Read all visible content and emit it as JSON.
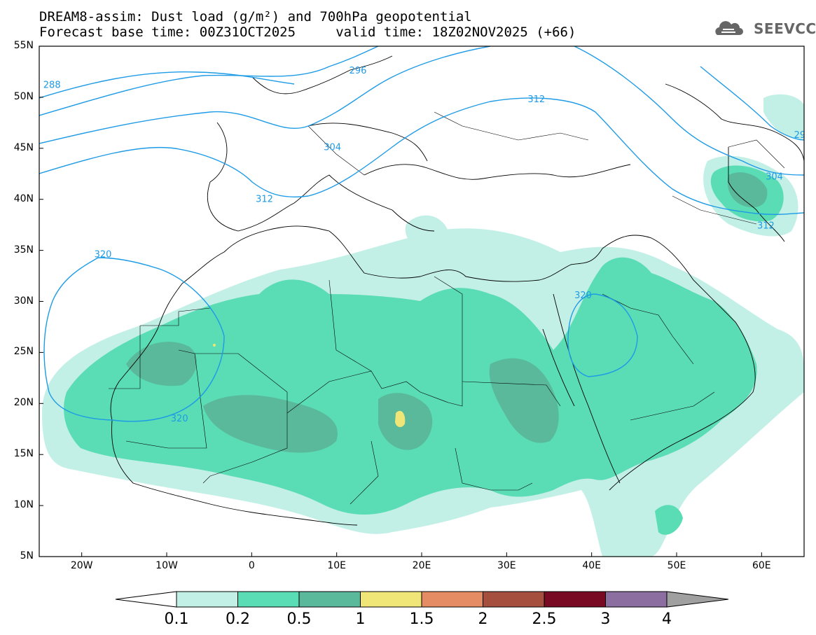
{
  "header": {
    "title_line1": "DREAM8-assim: Dust load (g/m²) and 700hPa geopotential",
    "title_line2": "Forecast base time: 00Z31OCT2025     valid time: 18Z02NOV2025 (+66)",
    "logo_text": "SEEVCCC"
  },
  "map": {
    "lat_range": [
      5,
      55
    ],
    "lon_range": [
      -25,
      65
    ],
    "lat_ticks": [
      {
        "value": 55,
        "label": "55N"
      },
      {
        "value": 50,
        "label": "50N"
      },
      {
        "value": 45,
        "label": "45N"
      },
      {
        "value": 40,
        "label": "40N"
      },
      {
        "value": 35,
        "label": "35N"
      },
      {
        "value": 30,
        "label": "30N"
      },
      {
        "value": 25,
        "label": "25N"
      },
      {
        "value": 20,
        "label": "20N"
      },
      {
        "value": 15,
        "label": "15N"
      },
      {
        "value": 10,
        "label": "10N"
      },
      {
        "value": 5,
        "label": "5N"
      }
    ],
    "lon_ticks": [
      {
        "value": -20,
        "label": "20W"
      },
      {
        "value": -10,
        "label": "10W"
      },
      {
        "value": 0,
        "label": "0"
      },
      {
        "value": 10,
        "label": "10E"
      },
      {
        "value": 20,
        "label": "20E"
      },
      {
        "value": 30,
        "label": "30E"
      },
      {
        "value": 40,
        "label": "40E"
      },
      {
        "value": 50,
        "label": "50E"
      },
      {
        "value": 60,
        "label": "60E"
      }
    ],
    "contour_labels": [
      {
        "text": "288",
        "lon": -23.5,
        "lat": 51.2
      },
      {
        "text": "296",
        "lon": 12.5,
        "lat": 52.6
      },
      {
        "text": "304",
        "lon": 9.5,
        "lat": 45.1
      },
      {
        "text": "312",
        "lon": 1.5,
        "lat": 40.0
      },
      {
        "text": "312",
        "lon": 33.5,
        "lat": 49.8
      },
      {
        "text": "304",
        "lon": 61.5,
        "lat": 42.2
      },
      {
        "text": "312",
        "lon": 60.5,
        "lat": 37.4
      },
      {
        "text": "29",
        "lon": 64.5,
        "lat": 46.3
      },
      {
        "text": "320",
        "lon": -17.5,
        "lat": 34.6
      },
      {
        "text": "320",
        "lon": -8.5,
        "lat": 18.5
      },
      {
        "text": "320",
        "lon": 39.0,
        "lat": 30.6
      }
    ]
  },
  "colorbar": {
    "colors": [
      "#c3f0e6",
      "#5adcb4",
      "#5ab99b",
      "#f0e678",
      "#e68c64",
      "#a5503f",
      "#780a23",
      "#8c6ea0"
    ],
    "labels": [
      "0.1",
      "0.2",
      "0.5",
      "1",
      "1.5",
      "2",
      "2.5",
      "3",
      "4"
    ]
  },
  "colors": {
    "contour_line": "#1e9be6",
    "coastline": "#000000"
  }
}
